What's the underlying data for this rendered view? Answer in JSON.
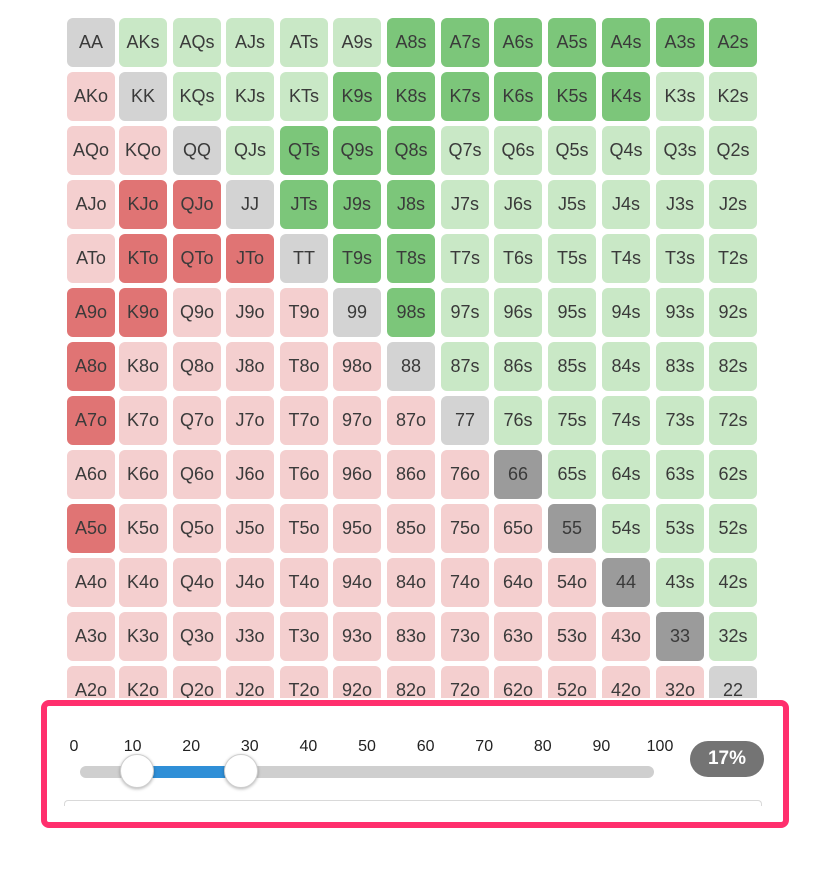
{
  "hand_grid": {
    "rows": [
      [
        [
          "AA",
          "pl"
        ],
        [
          "AKs",
          "sl"
        ],
        [
          "AQs",
          "sl"
        ],
        [
          "AJs",
          "sl"
        ],
        [
          "ATs",
          "sl"
        ],
        [
          "A9s",
          "sl"
        ],
        [
          "A8s",
          "sg"
        ],
        [
          "A7s",
          "sg"
        ],
        [
          "A6s",
          "sg"
        ],
        [
          "A5s",
          "sg"
        ],
        [
          "A4s",
          "sg"
        ],
        [
          "A3s",
          "sg"
        ],
        [
          "A2s",
          "sg"
        ]
      ],
      [
        [
          "AKo",
          "ol"
        ],
        [
          "KK",
          "pl"
        ],
        [
          "KQs",
          "sl"
        ],
        [
          "KJs",
          "sl"
        ],
        [
          "KTs",
          "sl"
        ],
        [
          "K9s",
          "sg"
        ],
        [
          "K8s",
          "sg"
        ],
        [
          "K7s",
          "sg"
        ],
        [
          "K6s",
          "sg"
        ],
        [
          "K5s",
          "sg"
        ],
        [
          "K4s",
          "sg"
        ],
        [
          "K3s",
          "sl"
        ],
        [
          "K2s",
          "sl"
        ]
      ],
      [
        [
          "AQo",
          "ol"
        ],
        [
          "KQo",
          "ol"
        ],
        [
          "QQ",
          "pl"
        ],
        [
          "QJs",
          "sl"
        ],
        [
          "QTs",
          "sg"
        ],
        [
          "Q9s",
          "sg"
        ],
        [
          "Q8s",
          "sg"
        ],
        [
          "Q7s",
          "sl"
        ],
        [
          "Q6s",
          "sl"
        ],
        [
          "Q5s",
          "sl"
        ],
        [
          "Q4s",
          "sl"
        ],
        [
          "Q3s",
          "sl"
        ],
        [
          "Q2s",
          "sl"
        ]
      ],
      [
        [
          "AJo",
          "ol"
        ],
        [
          "KJo",
          "os"
        ],
        [
          "QJo",
          "os"
        ],
        [
          "JJ",
          "pl"
        ],
        [
          "JTs",
          "sg"
        ],
        [
          "J9s",
          "sg"
        ],
        [
          "J8s",
          "sg"
        ],
        [
          "J7s",
          "sl"
        ],
        [
          "J6s",
          "sl"
        ],
        [
          "J5s",
          "sl"
        ],
        [
          "J4s",
          "sl"
        ],
        [
          "J3s",
          "sl"
        ],
        [
          "J2s",
          "sl"
        ]
      ],
      [
        [
          "ATo",
          "ol"
        ],
        [
          "KTo",
          "os"
        ],
        [
          "QTo",
          "os"
        ],
        [
          "JTo",
          "os"
        ],
        [
          "TT",
          "pl"
        ],
        [
          "T9s",
          "sg"
        ],
        [
          "T8s",
          "sg"
        ],
        [
          "T7s",
          "sl"
        ],
        [
          "T6s",
          "sl"
        ],
        [
          "T5s",
          "sl"
        ],
        [
          "T4s",
          "sl"
        ],
        [
          "T3s",
          "sl"
        ],
        [
          "T2s",
          "sl"
        ]
      ],
      [
        [
          "A9o",
          "os"
        ],
        [
          "K9o",
          "os"
        ],
        [
          "Q9o",
          "ol"
        ],
        [
          "J9o",
          "ol"
        ],
        [
          "T9o",
          "ol"
        ],
        [
          "99",
          "pl"
        ],
        [
          "98s",
          "sg"
        ],
        [
          "97s",
          "sl"
        ],
        [
          "96s",
          "sl"
        ],
        [
          "95s",
          "sl"
        ],
        [
          "94s",
          "sl"
        ],
        [
          "93s",
          "sl"
        ],
        [
          "92s",
          "sl"
        ]
      ],
      [
        [
          "A8o",
          "os"
        ],
        [
          "K8o",
          "ol"
        ],
        [
          "Q8o",
          "ol"
        ],
        [
          "J8o",
          "ol"
        ],
        [
          "T8o",
          "ol"
        ],
        [
          "98o",
          "ol"
        ],
        [
          "88",
          "pl"
        ],
        [
          "87s",
          "sl"
        ],
        [
          "86s",
          "sl"
        ],
        [
          "85s",
          "sl"
        ],
        [
          "84s",
          "sl"
        ],
        [
          "83s",
          "sl"
        ],
        [
          "82s",
          "sl"
        ]
      ],
      [
        [
          "A7o",
          "os"
        ],
        [
          "K7o",
          "ol"
        ],
        [
          "Q7o",
          "ol"
        ],
        [
          "J7o",
          "ol"
        ],
        [
          "T7o",
          "ol"
        ],
        [
          "97o",
          "ol"
        ],
        [
          "87o",
          "ol"
        ],
        [
          "77",
          "pl"
        ],
        [
          "76s",
          "sl"
        ],
        [
          "75s",
          "sl"
        ],
        [
          "74s",
          "sl"
        ],
        [
          "73s",
          "sl"
        ],
        [
          "72s",
          "sl"
        ]
      ],
      [
        [
          "A6o",
          "ol"
        ],
        [
          "K6o",
          "ol"
        ],
        [
          "Q6o",
          "ol"
        ],
        [
          "J6o",
          "ol"
        ],
        [
          "T6o",
          "ol"
        ],
        [
          "96o",
          "ol"
        ],
        [
          "86o",
          "ol"
        ],
        [
          "76o",
          "ol"
        ],
        [
          "66",
          "pd"
        ],
        [
          "65s",
          "sl"
        ],
        [
          "64s",
          "sl"
        ],
        [
          "63s",
          "sl"
        ],
        [
          "62s",
          "sl"
        ]
      ],
      [
        [
          "A5o",
          "os"
        ],
        [
          "K5o",
          "ol"
        ],
        [
          "Q5o",
          "ol"
        ],
        [
          "J5o",
          "ol"
        ],
        [
          "T5o",
          "ol"
        ],
        [
          "95o",
          "ol"
        ],
        [
          "85o",
          "ol"
        ],
        [
          "75o",
          "ol"
        ],
        [
          "65o",
          "ol"
        ],
        [
          "55",
          "pd"
        ],
        [
          "54s",
          "sl"
        ],
        [
          "53s",
          "sl"
        ],
        [
          "52s",
          "sl"
        ]
      ],
      [
        [
          "A4o",
          "ol"
        ],
        [
          "K4o",
          "ol"
        ],
        [
          "Q4o",
          "ol"
        ],
        [
          "J4o",
          "ol"
        ],
        [
          "T4o",
          "ol"
        ],
        [
          "94o",
          "ol"
        ],
        [
          "84o",
          "ol"
        ],
        [
          "74o",
          "ol"
        ],
        [
          "64o",
          "ol"
        ],
        [
          "54o",
          "ol"
        ],
        [
          "44",
          "pd"
        ],
        [
          "43s",
          "sl"
        ],
        [
          "42s",
          "sl"
        ]
      ],
      [
        [
          "A3o",
          "ol"
        ],
        [
          "K3o",
          "ol"
        ],
        [
          "Q3o",
          "ol"
        ],
        [
          "J3o",
          "ol"
        ],
        [
          "T3o",
          "ol"
        ],
        [
          "93o",
          "ol"
        ],
        [
          "83o",
          "ol"
        ],
        [
          "73o",
          "ol"
        ],
        [
          "63o",
          "ol"
        ],
        [
          "53o",
          "ol"
        ],
        [
          "43o",
          "ol"
        ],
        [
          "33",
          "pd"
        ],
        [
          "32s",
          "sl"
        ]
      ],
      [
        [
          "A2o",
          "ol"
        ],
        [
          "K2o",
          "ol"
        ],
        [
          "Q2o",
          "ol"
        ],
        [
          "J2o",
          "ol"
        ],
        [
          "T2o",
          "ol"
        ],
        [
          "92o",
          "ol"
        ],
        [
          "82o",
          "ol"
        ],
        [
          "72o",
          "ol"
        ],
        [
          "62o",
          "ol"
        ],
        [
          "52o",
          "ol"
        ],
        [
          "42o",
          "ol"
        ],
        [
          "32o",
          "ol"
        ],
        [
          "22",
          "pl"
        ]
      ]
    ]
  },
  "slider": {
    "ticks": [
      "0",
      "10",
      "20",
      "30",
      "40",
      "50",
      "60",
      "70",
      "80",
      "90",
      "100"
    ],
    "range_low": 10,
    "range_high": 28,
    "min": 0,
    "max": 100,
    "percent_label": "17%",
    "accent_color": "#2f8fd7",
    "highlight_border_color": "#ff2f6d"
  }
}
